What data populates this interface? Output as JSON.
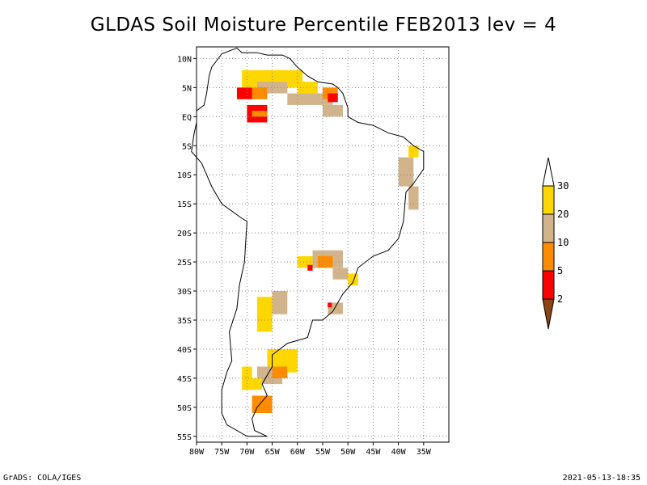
{
  "title": "GLDAS Soil Moisture Percentile FEB2013 lev = 4",
  "footer": {
    "left": "GrADS: COLA/IGES",
    "right": "2021-05-13-18:35"
  },
  "map": {
    "lon_range": [
      -80,
      -30
    ],
    "lat_range": [
      -56,
      12
    ],
    "x_ticks": [
      {
        "v": -80,
        "label": "80W"
      },
      {
        "v": -75,
        "label": "75W"
      },
      {
        "v": -70,
        "label": "70W"
      },
      {
        "v": -65,
        "label": "65W"
      },
      {
        "v": -60,
        "label": "60W"
      },
      {
        "v": -55,
        "label": "55W"
      },
      {
        "v": -50,
        "label": "50W"
      },
      {
        "v": -45,
        "label": "45W"
      },
      {
        "v": -40,
        "label": "40W"
      },
      {
        "v": -35,
        "label": "35W"
      }
    ],
    "y_ticks": [
      {
        "v": 10,
        "label": "10N"
      },
      {
        "v": 5,
        "label": "5N"
      },
      {
        "v": 0,
        "label": "EQ"
      },
      {
        "v": -5,
        "label": "5S"
      },
      {
        "v": -10,
        "label": "10S"
      },
      {
        "v": -15,
        "label": "15S"
      },
      {
        "v": -20,
        "label": "20S"
      },
      {
        "v": -25,
        "label": "25S"
      },
      {
        "v": -30,
        "label": "30S"
      },
      {
        "v": -35,
        "label": "35S"
      },
      {
        "v": -40,
        "label": "40S"
      },
      {
        "v": -45,
        "label": "45S"
      },
      {
        "v": -50,
        "label": "50S"
      },
      {
        "v": -55,
        "label": "55S"
      }
    ],
    "grid": "dotted"
  },
  "colorbar": {
    "levels": [
      "2",
      "5",
      "10",
      "20",
      "30"
    ],
    "colors": {
      "below_2": "#8B4513",
      "2_5": "#FF0000",
      "5_10": "#FF8C00",
      "10_20": "#D2B48C",
      "20_30": "#FFD700",
      "above_30": "#FFFFFF"
    }
  },
  "anomaly_regions": [
    {
      "cat": "20_30",
      "lon": -71,
      "lat": 8,
      "w": 8,
      "h": 3
    },
    {
      "cat": "20_30",
      "lon": -65,
      "lat": 8,
      "w": 6,
      "h": 3
    },
    {
      "cat": "10_20",
      "lon": -68,
      "lat": 6,
      "w": 6,
      "h": 2
    },
    {
      "cat": "5_10",
      "lon": -70,
      "lat": 5,
      "w": 4,
      "h": 2
    },
    {
      "cat": "2_5",
      "lon": -72,
      "lat": 5,
      "w": 3,
      "h": 2
    },
    {
      "cat": "2_5",
      "lon": -70,
      "lat": 2,
      "w": 4,
      "h": 3
    },
    {
      "cat": "5_10",
      "lon": -69,
      "lat": 1,
      "w": 3,
      "h": 1
    },
    {
      "cat": "10_20",
      "lon": -62,
      "lat": 4,
      "w": 9,
      "h": 2
    },
    {
      "cat": "20_30",
      "lon": -60,
      "lat": 6,
      "w": 4,
      "h": 2
    },
    {
      "cat": "5_10",
      "lon": -55,
      "lat": 5,
      "w": 3,
      "h": 2
    },
    {
      "cat": "2_5",
      "lon": -54,
      "lat": 4,
      "w": 2,
      "h": 1.5
    },
    {
      "cat": "10_20",
      "lon": -55,
      "lat": 2,
      "w": 4,
      "h": 2
    },
    {
      "cat": "10_20",
      "lon": -40,
      "lat": -7,
      "w": 3,
      "h": 5
    },
    {
      "cat": "20_30",
      "lon": -38,
      "lat": -5,
      "w": 2,
      "h": 2
    },
    {
      "cat": "10_20",
      "lon": -38,
      "lat": -12,
      "w": 2,
      "h": 4
    },
    {
      "cat": "20_30",
      "lon": -60,
      "lat": -24,
      "w": 4,
      "h": 2
    },
    {
      "cat": "10_20",
      "lon": -57,
      "lat": -23,
      "w": 6,
      "h": 3
    },
    {
      "cat": "5_10",
      "lon": -56,
      "lat": -24,
      "w": 3,
      "h": 2
    },
    {
      "cat": "2_5",
      "lon": -58,
      "lat": -25.5,
      "w": 1,
      "h": 1
    },
    {
      "cat": "10_20",
      "lon": -53,
      "lat": -26,
      "w": 3,
      "h": 2
    },
    {
      "cat": "20_30",
      "lon": -50,
      "lat": -27,
      "w": 2,
      "h": 2
    },
    {
      "cat": "10_20",
      "lon": -65,
      "lat": -30,
      "w": 3,
      "h": 4
    },
    {
      "cat": "20_30",
      "lon": -68,
      "lat": -31,
      "w": 3,
      "h": 6
    },
    {
      "cat": "20_30",
      "lon": -66,
      "lat": -40,
      "w": 6,
      "h": 4
    },
    {
      "cat": "10_20",
      "lon": -68,
      "lat": -43,
      "w": 5,
      "h": 3
    },
    {
      "cat": "5_10",
      "lon": -65,
      "lat": -43,
      "w": 3,
      "h": 2
    },
    {
      "cat": "20_30",
      "lon": -71,
      "lat": -43,
      "w": 2,
      "h": 4
    },
    {
      "cat": "5_10",
      "lon": -69,
      "lat": -48,
      "w": 4,
      "h": 3
    },
    {
      "cat": "20_30",
      "lon": -69,
      "lat": -45,
      "w": 2,
      "h": 2
    },
    {
      "cat": "10_20",
      "lon": -54,
      "lat": -32,
      "w": 3,
      "h": 2
    },
    {
      "cat": "2_5",
      "lon": -54,
      "lat": -32,
      "w": 0.8,
      "h": 0.8
    }
  ]
}
